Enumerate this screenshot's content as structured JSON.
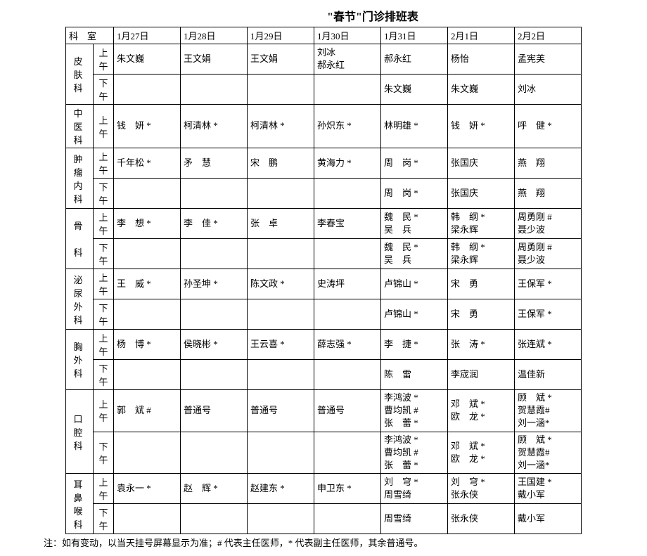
{
  "title": "\"春节\"门诊排班表",
  "header": {
    "dept": "科　室",
    "dates": [
      "1月27日",
      "1月28日",
      "1月29日",
      "1月30日",
      "1月31日",
      "2月1日",
      "2月2日"
    ]
  },
  "time_labels": {
    "am": "上午",
    "pm": "下午"
  },
  "departments": [
    {
      "name": "皮肤科",
      "rows": [
        {
          "time": "am",
          "cells": [
            "朱文巍",
            "王文娟",
            "王文娟",
            "刘冰\n郝永红",
            "郝永红",
            "杨怡",
            "孟宪芙"
          ]
        },
        {
          "time": "pm",
          "cells": [
            "",
            "",
            "",
            "",
            "朱文巍",
            "朱文巍",
            "刘冰"
          ]
        }
      ]
    },
    {
      "name": "中医科",
      "rows": [
        {
          "time": "am",
          "cells": [
            "钱　妍 *",
            "柯清林 *",
            "柯清林 *",
            "孙炽东 *",
            "林明雄 *",
            "钱　妍 *",
            "呼　健 *"
          ]
        }
      ]
    },
    {
      "name": "肿瘤内科",
      "rows": [
        {
          "time": "am",
          "cells": [
            "千年松 *",
            "矛　慧",
            "宋　鹏",
            "黄海力 *",
            "周　岗 *",
            "张国庆",
            "燕　翔"
          ]
        },
        {
          "time": "pm",
          "cells": [
            "",
            "",
            "",
            "",
            "周　岗 *",
            "张国庆",
            "燕　翔"
          ]
        }
      ]
    },
    {
      "name": "骨　科",
      "rows": [
        {
          "time": "am",
          "cells": [
            "李　想 *",
            "李　佳 *",
            "张　卓",
            "李春宝",
            "魏　民 *\n吴　兵",
            "韩　纲 *\n梁永辉",
            "周勇刚 #\n聂少波"
          ]
        },
        {
          "time": "pm",
          "cells": [
            "",
            "",
            "",
            "",
            "魏　民 *\n吴　兵",
            "韩　纲 *\n梁永辉",
            "周勇刚 #\n聂少波"
          ]
        }
      ]
    },
    {
      "name": "泌尿外科",
      "rows": [
        {
          "time": "am",
          "cells": [
            "王　威 *",
            "孙圣坤 *",
            "陈文政 *",
            "史涛坪",
            "卢锦山 *",
            "宋　勇",
            "王保军 *"
          ]
        },
        {
          "time": "pm",
          "cells": [
            "",
            "",
            "",
            "",
            "卢锦山 *",
            "宋　勇",
            "王保军 *"
          ]
        }
      ]
    },
    {
      "name": "胸外科",
      "rows": [
        {
          "time": "am",
          "cells": [
            "杨　博 *",
            "侯晓彬 *",
            "王云喜 *",
            "薛志强 *",
            "李　捷 *",
            "张　涛 *",
            "张连斌 *"
          ]
        },
        {
          "time": "pm",
          "cells": [
            "",
            "",
            "",
            "",
            "陈　雷",
            "李宬润",
            "温佳新"
          ]
        }
      ]
    },
    {
      "name": "口腔科",
      "rows": [
        {
          "time": "am",
          "cells": [
            "郭　斌 #",
            "普通号",
            "普通号",
            "普通号",
            "李鸿波 *\n曹均凯 #\n张　蕾 *",
            "邓　斌 *\n欧　龙 *",
            "顾　斌 *\n贺慧霞#\n刘一涵*"
          ]
        },
        {
          "time": "pm",
          "cells": [
            "",
            "",
            "",
            "",
            "李鸿波 *\n曹均凯 #\n张　蕾 *",
            "邓　斌 *\n欧　龙 *",
            "顾　斌 *\n贺慧霞#\n刘一涵*"
          ]
        }
      ]
    },
    {
      "name": "耳鼻喉科",
      "rows": [
        {
          "time": "am",
          "cells": [
            "袁永一 *",
            "赵　辉 *",
            "赵建东 *",
            "申卫东 *",
            "刘　穹 *\n周雪绮",
            "刘　穹 *\n张永侠",
            "王国建 *\n戴小军"
          ]
        },
        {
          "time": "pm",
          "cells": [
            "",
            "",
            "",
            "",
            "周雪绮",
            "张永侠",
            "戴小军"
          ]
        }
      ]
    }
  ],
  "footnote": "注：如有变动，以当天挂号屏幕显示为准；# 代表主任医师，* 代表副主任医师，其余普通号。"
}
